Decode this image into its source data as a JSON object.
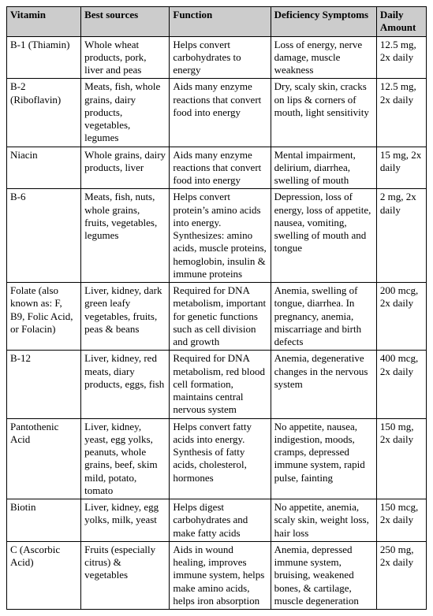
{
  "table": {
    "header_bg": "#cccccc",
    "columns": [
      {
        "label": "Vitamin"
      },
      {
        "label": "Best sources"
      },
      {
        "label": "Function"
      },
      {
        "label": "Deficiency Symptoms"
      },
      {
        "label": "Daily Amount"
      }
    ],
    "rows": [
      {
        "vitamin": "B-1 (Thiamin)",
        "sources": "Whole wheat products, pork, liver and peas",
        "function": "Helps convert carbohydrates to energy",
        "deficiency": "Loss of energy, nerve damage, muscle weakness",
        "daily": "12.5 mg, 2x daily"
      },
      {
        "vitamin": "B-2 (Riboflavin)",
        "sources": "Meats, fish, whole grains, dairy products, vegetables, legumes",
        "function": "Aids many enzyme reactions that convert food into energy",
        "deficiency": "Dry, scaly skin, cracks on lips & corners of mouth, light sensitivity",
        "daily": "12.5 mg, 2x daily"
      },
      {
        "vitamin": "Niacin",
        "sources": "Whole grains, dairy products, liver",
        "function": "Aids many enzyme reactions that convert food into energy",
        "deficiency": "Mental impairment, delirium, diarrhea, swelling of mouth",
        "daily": "15 mg, 2x daily"
      },
      {
        "vitamin": "B-6",
        "sources": "Meats, fish, nuts, whole grains, fruits, vegetables, legumes",
        "function": "Helps convert protein’s amino acids into energy. Synthesizes: amino acids, muscle proteins, hemoglobin, insulin & immune proteins",
        "deficiency": "Depression, loss of energy, loss of appetite, nausea, vomiting, swelling of mouth and tongue",
        "daily": "2 mg, 2x daily"
      },
      {
        "vitamin": "Folate (also known as: F, B9, Folic Acid, or Folacin)",
        "sources": "Liver, kidney, dark green leafy vegetables, fruits, peas & beans",
        "function": "Required for DNA metabolism, important for genetic functions such as cell division and growth",
        "deficiency": "Anemia, swelling of tongue, diarrhea. In pregnancy, anemia, miscarriage and birth defects",
        "daily": "200 mcg, 2x daily"
      },
      {
        "vitamin": "B-12",
        "sources": "Liver, kidney, red meats, diary products, eggs, fish",
        "function": "Required for DNA metabolism, red blood cell formation, maintains central nervous system",
        "deficiency": "Anemia, degenerative changes in the nervous system",
        "daily": "400 mcg, 2x daily"
      },
      {
        "vitamin": "Pantothenic Acid",
        "sources": "Liver, kidney, yeast, egg yolks, peanuts, whole grains, beef, skim mild, potato, tomato",
        "function": "Helps convert fatty acids into energy. Synthesis of fatty acids, cholesterol, hormones",
        "deficiency": "No appetite, nausea, indigestion, moods, cramps, depressed immune system, rapid pulse, fainting",
        "daily": "150 mg, 2x daily"
      },
      {
        "vitamin": "Biotin",
        "sources": "Liver, kidney, egg yolks, milk, yeast",
        "function": "Helps digest carbohydrates and make fatty acids",
        "deficiency": "No appetite, anemia, scaly skin, weight loss, hair loss",
        "daily": "150 mcg, 2x daily"
      },
      {
        "vitamin": "C (Ascorbic Acid)",
        "sources": "Fruits (especially citrus) & vegetables",
        "function": "Aids in wound healing, improves immune system, helps make amino acids, helps iron absorption",
        "deficiency": "Anemia, depressed immune system, bruising, weakened bones, & cartilage, muscle degeneration",
        "daily": "250 mg, 2x daily"
      }
    ]
  }
}
